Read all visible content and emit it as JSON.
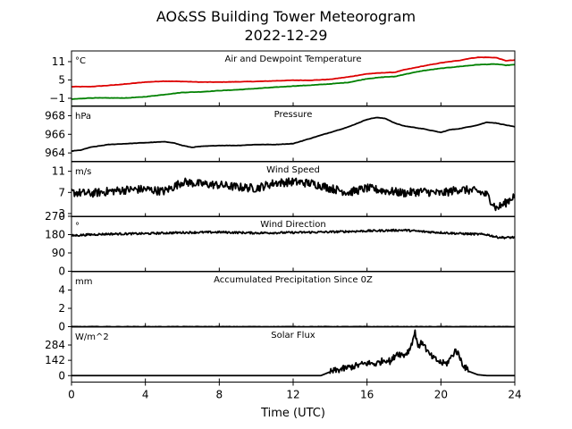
{
  "title": "AO&SS Building Tower Meteorogram",
  "subtitle": "2022-12-29",
  "xlabel": "Time (UTC)",
  "chart_data": {
    "type": "line",
    "x_ticks": [
      "0",
      "4",
      "8",
      "12",
      "16",
      "20",
      "24"
    ],
    "xlim": [
      0,
      24
    ],
    "panels": [
      {
        "id": "temperature",
        "label": "Air and Dewpoint Temperature",
        "unit": "°C",
        "ylim": [
          -3.5,
          14.5
        ],
        "yticks": [
          -1,
          5,
          11
        ],
        "ytick_labels": [
          "−1",
          "5",
          "11"
        ],
        "series": [
          {
            "color": "#dd0000",
            "x": [
              0,
              1,
              2,
              3,
              4,
              5,
              6,
              7,
              8,
              9,
              10,
              11,
              12,
              13,
              14,
              15,
              16,
              17,
              17.5,
              18,
              19,
              20,
              21,
              21.5,
              22,
              22.5,
              23,
              23.5,
              24
            ],
            "y": [
              2.8,
              2.8,
              3.2,
              3.7,
              4.3,
              4.6,
              4.5,
              4.3,
              4.3,
              4.4,
              4.5,
              4.7,
              4.9,
              4.9,
              5.2,
              6.0,
              7.0,
              7.4,
              7.5,
              8.3,
              9.5,
              10.6,
              11.4,
              12.0,
              12.4,
              12.4,
              12.3,
              11.3,
              11.5
            ]
          },
          {
            "color": "#008000",
            "x": [
              0,
              1,
              2,
              3,
              4,
              5,
              6,
              7,
              8,
              9,
              10,
              11,
              12,
              13,
              14,
              15,
              16,
              17,
              17.5,
              18,
              19,
              20,
              21,
              22,
              23,
              23.5,
              24
            ],
            "y": [
              -1.3,
              -0.9,
              -0.9,
              -0.9,
              -0.5,
              0.2,
              0.9,
              1.1,
              1.5,
              1.8,
              2.2,
              2.6,
              3.0,
              3.3,
              3.7,
              4.2,
              5.4,
              6.0,
              6.1,
              6.8,
              8.0,
              8.8,
              9.4,
              10.0,
              10.2,
              9.8,
              10.0
            ]
          }
        ]
      },
      {
        "id": "pressure",
        "label": "Pressure",
        "unit": "hPa",
        "ylim": [
          963.1,
          969.0
        ],
        "yticks": [
          964,
          966,
          968
        ],
        "ytick_labels": [
          "964",
          "966",
          "968"
        ],
        "series": [
          {
            "color": "#000000",
            "x": [
              0,
              0.5,
              1,
              2,
              3,
              4,
              5,
              5.5,
              6,
              6.5,
              7,
              8,
              9,
              10,
              11,
              12,
              13,
              14,
              15,
              16,
              16.5,
              17,
              17.5,
              18,
              19,
              20,
              20.5,
              21,
              22,
              22.5,
              23,
              24
            ],
            "y": [
              964.2,
              964.3,
              964.6,
              964.9,
              965.0,
              965.1,
              965.2,
              965.1,
              964.8,
              964.6,
              964.7,
              964.8,
              964.8,
              964.9,
              964.9,
              965.0,
              965.6,
              966.2,
              966.8,
              967.6,
              967.8,
              967.7,
              967.2,
              966.9,
              966.6,
              966.2,
              966.5,
              966.6,
              967.0,
              967.3,
              967.2,
              966.8
            ]
          }
        ]
      },
      {
        "id": "wind_speed",
        "label": "Wind Speed",
        "unit": "m/s",
        "ylim": [
          2.4,
          12.8
        ],
        "yticks": [
          3,
          7,
          11
        ],
        "ytick_labels": [
          "3",
          "7",
          "11"
        ],
        "series": [
          {
            "color": "#000000",
            "x": [
              0,
              1,
              2,
              3,
              4,
              5,
              5.5,
              6,
              6.5,
              7,
              8,
              9,
              10,
              11,
              12,
              13,
              13.5,
              14,
              15,
              16,
              17,
              18,
              19,
              20,
              21,
              22,
              22.5,
              23,
              23.5,
              24
            ],
            "y": [
              7.0,
              6.8,
              7.2,
              7.5,
              7.6,
              7.2,
              8.0,
              9.0,
              8.8,
              8.6,
              8.4,
              8.0,
              7.8,
              8.8,
              9.0,
              8.7,
              8.3,
              7.8,
              7.0,
              7.8,
              7.3,
              6.9,
              7.2,
              6.8,
              7.6,
              7.2,
              6.5,
              4.0,
              5.0,
              6.5
            ]
          }
        ],
        "noise": 0.8
      },
      {
        "id": "wind_direction",
        "label": "Wind Direction",
        "unit": "°",
        "ylim": [
          0,
          270
        ],
        "yticks": [
          0,
          90,
          180,
          270
        ],
        "ytick_labels": [
          "0",
          "90",
          "180",
          "270"
        ],
        "series": [
          {
            "color": "#000000",
            "x": [
              0,
              1,
              2,
              4,
              6,
              8,
              10,
              12,
              14,
              16,
              18,
              19,
              20,
              21,
              22,
              22.5,
              23,
              23.5,
              24
            ],
            "y": [
              175,
              180,
              183,
              185,
              190,
              192,
              188,
              190,
              193,
              198,
              202,
              195,
              190,
              185,
              182,
              180,
              168,
              165,
              167
            ]
          }
        ],
        "noise": 5
      },
      {
        "id": "precipitation",
        "label": "Accumulated Precipitation Since 0Z",
        "unit": "mm",
        "ylim": [
          0,
          6
        ],
        "yticks": [
          0,
          2,
          4
        ],
        "ytick_labels": [
          "0",
          "2",
          "4"
        ],
        "series": [
          {
            "color": "#000000",
            "x": [
              0,
              24
            ],
            "y": [
              0,
              0
            ]
          }
        ]
      },
      {
        "id": "solar_flux",
        "label": "Solar Flux",
        "unit": "W/m^2",
        "ylim": [
          -60,
          450
        ],
        "yticks": [
          0,
          142,
          284
        ],
        "ytick_labels": [
          "0",
          "142",
          "284"
        ],
        "series": [
          {
            "color": "#000000",
            "x": [
              0,
              13.5,
              14,
              14.5,
              15,
              15.5,
              16,
              16.5,
              17,
              17.3,
              17.6,
              18,
              18.3,
              18.6,
              18.8,
              19,
              19.3,
              19.6,
              20,
              20.3,
              20.6,
              20.8,
              21,
              21.2,
              21.5,
              22,
              22.5,
              24
            ],
            "y": [
              0,
              0,
              35,
              55,
              75,
              95,
              115,
              110,
              150,
              130,
              210,
              190,
              240,
              400,
              260,
              320,
              210,
              160,
              120,
              110,
              180,
              240,
              180,
              100,
              40,
              8,
              0,
              0
            ]
          }
        ],
        "noise": 30,
        "noise_range": [
          14,
          21.5
        ]
      }
    ]
  }
}
